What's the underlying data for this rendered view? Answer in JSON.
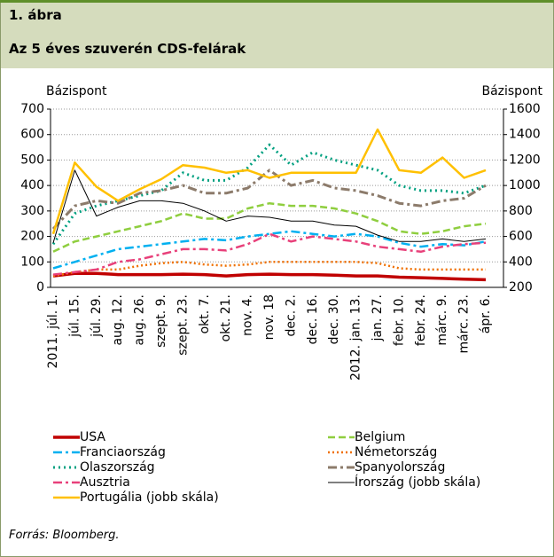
{
  "chart_data": {
    "type": "line",
    "figure_label": "1. ábra",
    "title": "Az 5 éves szuverén CDS-felárak",
    "ylabel": "Bázispont",
    "y2label": "Bázispont",
    "source": "Forrás: Bloomberg.",
    "categories": [
      "2011. júl. 1.",
      "júl. 15.",
      "júl. 29.",
      "aug. 12.",
      "aug. 26.",
      "szept. 9.",
      "szept. 23.",
      "okt. 7.",
      "okt. 21.",
      "nov. 4.",
      "nov. 18",
      "dec. 2.",
      "dec. 16.",
      "dec. 30.",
      "2012. jan. 13.",
      "jan. 27.",
      "febr. 10.",
      "febr. 24.",
      "márc. 9.",
      "márc. 23.",
      "ápr. 6."
    ],
    "ylim": [
      0,
      700
    ],
    "yticks": [
      0,
      100,
      200,
      300,
      400,
      500,
      600,
      700
    ],
    "y2lim": [
      200,
      1600
    ],
    "y2ticks": [
      200,
      400,
      600,
      800,
      1000,
      1200,
      1400,
      1600
    ],
    "series": [
      {
        "name": "USA",
        "color": "#c00000",
        "width": 3.5,
        "dash": "none",
        "values": [
          45,
          55,
          55,
          50,
          50,
          50,
          52,
          50,
          45,
          50,
          52,
          50,
          50,
          48,
          45,
          45,
          40,
          38,
          35,
          32,
          30
        ]
      },
      {
        "name": "Belgium",
        "color": "#8fce3f",
        "width": 2.5,
        "dash": "8,4",
        "values": [
          140,
          180,
          200,
          220,
          240,
          260,
          290,
          270,
          270,
          310,
          330,
          320,
          320,
          310,
          290,
          260,
          220,
          210,
          220,
          240,
          250
        ]
      },
      {
        "name": "Franciaország",
        "color": "#00b0f0",
        "width": 2.5,
        "dash": "10,4,3,4",
        "values": [
          75,
          100,
          125,
          150,
          160,
          170,
          180,
          190,
          185,
          200,
          210,
          220,
          210,
          200,
          210,
          200,
          175,
          160,
          170,
          165,
          180
        ]
      },
      {
        "name": "Németország",
        "color": "#f07000",
        "width": 2.5,
        "dash": "2,3",
        "values": [
          45,
          60,
          70,
          70,
          85,
          95,
          100,
          90,
          85,
          90,
          100,
          100,
          100,
          100,
          100,
          95,
          75,
          70,
          70,
          70,
          70
        ]
      },
      {
        "name": "Olaszország",
        "color": "#00a080",
        "width": 3,
        "dash": "2,4",
        "values": [
          170,
          290,
          320,
          340,
          360,
          380,
          450,
          420,
          420,
          470,
          560,
          480,
          530,
          500,
          480,
          460,
          400,
          380,
          380,
          370,
          400
        ]
      },
      {
        "name": "Spanyolország",
        "color": "#8c7b6b",
        "width": 3,
        "dash": "10,4,3,4",
        "values": [
          230,
          320,
          340,
          330,
          370,
          380,
          400,
          370,
          370,
          390,
          460,
          400,
          420,
          390,
          380,
          360,
          330,
          320,
          340,
          350,
          400
        ]
      },
      {
        "name": "Ausztria",
        "color": "#e8407a",
        "width": 2.5,
        "dash": "10,4,3,4",
        "values": [
          50,
          60,
          70,
          100,
          110,
          130,
          150,
          150,
          145,
          170,
          210,
          180,
          200,
          190,
          180,
          160,
          150,
          140,
          160,
          170,
          175
        ]
      },
      {
        "name": "Írország (jobb skála)",
        "color": "#000000",
        "width": 1,
        "dash": "none",
        "axis": "y2",
        "values": [
          550,
          1120,
          760,
          830,
          880,
          880,
          860,
          800,
          720,
          760,
          750,
          720,
          720,
          690,
          680,
          610,
          560,
          560,
          580,
          560,
          580
        ]
      },
      {
        "name": "Portugália (jobb skála)",
        "color": "#ffc000",
        "width": 2.5,
        "dash": "none",
        "axis": "y2",
        "values": [
          620,
          1180,
          990,
          880,
          970,
          1050,
          1160,
          1140,
          1100,
          1120,
          1060,
          1100,
          1100,
          1100,
          1100,
          1440,
          1120,
          1100,
          1220,
          1060,
          1120
        ]
      }
    ]
  }
}
